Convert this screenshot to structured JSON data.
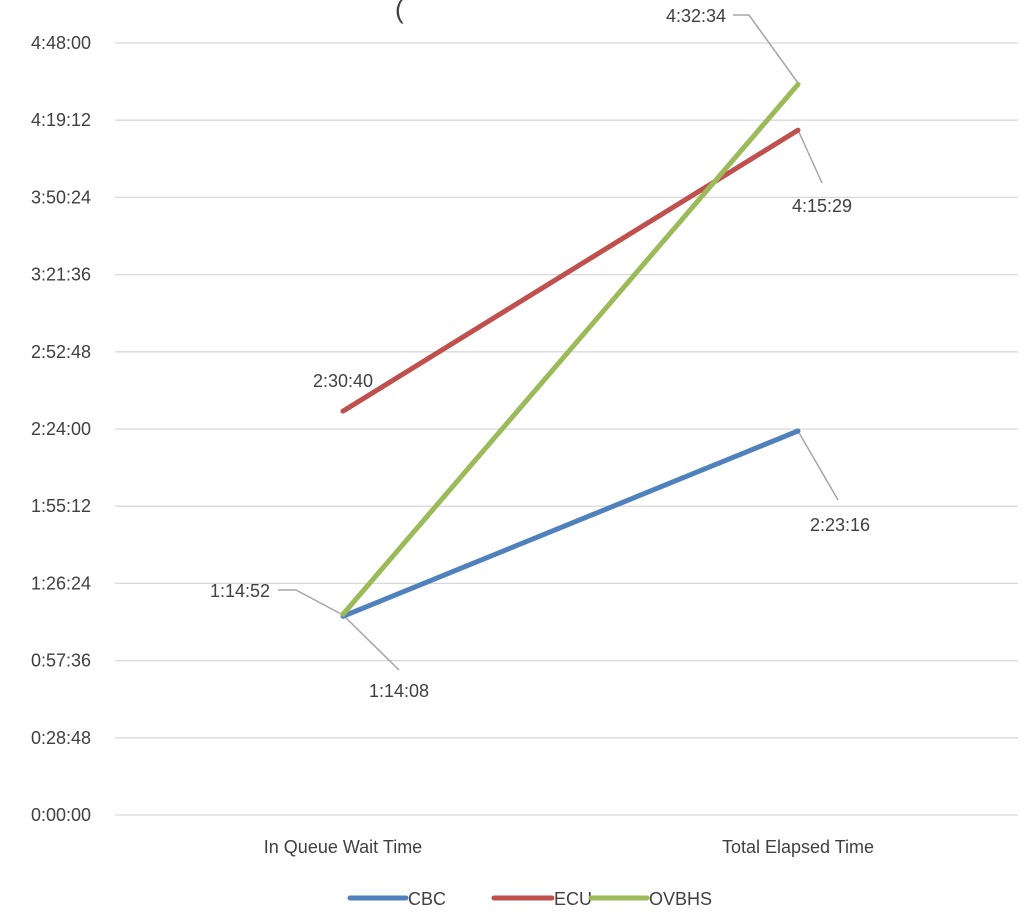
{
  "chart_data": {
    "type": "line",
    "title": "(",
    "categories": [
      "In Queue Wait Time",
      "Total Elapsed Time"
    ],
    "y_tick_labels": [
      "0:00:00",
      "0:28:48",
      "0:57:36",
      "1:26:24",
      "1:55:12",
      "2:24:00",
      "2:52:48",
      "3:21:36",
      "3:50:24",
      "4:19:12",
      "4:48:00"
    ],
    "ylim_seconds": [
      0,
      17280
    ],
    "ytick_step_seconds": 1728,
    "grid": true,
    "legend_position": "bottom",
    "series": [
      {
        "name": "CBC",
        "color": "#4F81BD",
        "values": [
          "1:14:08",
          "2:23:16"
        ],
        "values_seconds": [
          4448,
          8596
        ],
        "labels": [
          "1:14:08",
          "2:23:16"
        ]
      },
      {
        "name": "ECU",
        "color": "#C0504D",
        "values": [
          "2:30:40",
          "4:15:29"
        ],
        "values_seconds": [
          9040,
          15329
        ],
        "labels": [
          "2:30:40",
          "4:15:29"
        ]
      },
      {
        "name": "OVBHS",
        "color": "#9BBB59",
        "values": [
          "1:14:52",
          "4:32:34"
        ],
        "values_seconds": [
          4492,
          16354
        ],
        "labels": [
          "1:14:52",
          "4:32:34"
        ]
      }
    ]
  }
}
